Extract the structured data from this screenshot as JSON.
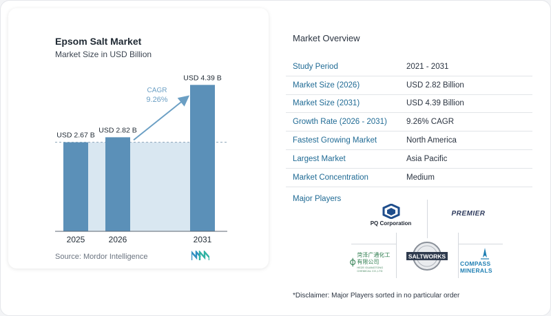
{
  "chart_data": {
    "type": "bar",
    "title": "Epsom Salt Market",
    "subtitle": "Market Size in USD Billion",
    "categories": [
      "2025",
      "2026",
      "2031"
    ],
    "values": [
      2.67,
      2.82,
      4.39
    ],
    "data_labels": [
      "USD 2.67 B",
      "USD 2.82 B",
      "USD 4.39 B"
    ],
    "cagr_label": "CAGR",
    "cagr_value": "9.26%",
    "bar_color": "#5b90b8",
    "highlight_color": "#d9e7f1",
    "ylim": [
      0,
      4.5
    ],
    "grid": false
  },
  "source": "Source:  Mordor Intelligence",
  "overview": {
    "title": "Market Overview",
    "rows": [
      {
        "label": "Study Period",
        "value": "2021 - 2031"
      },
      {
        "label": "Market Size (2026)",
        "value": "USD 2.82 Billion"
      },
      {
        "label": "Market Size (2031)",
        "value": "USD 4.39 Billion"
      },
      {
        "label": "Growth Rate (2026 - 2031)",
        "value": "9.26% CAGR"
      },
      {
        "label": "Fastest Growing Market",
        "value": "North America"
      },
      {
        "label": "Largest Market",
        "value": "Asia Pacific"
      },
      {
        "label": "Market Concentration",
        "value": "Medium"
      }
    ]
  },
  "players": {
    "title": "Major Players",
    "pq": "PQ Corporation",
    "premier": "PREMIER",
    "chinese": "菏泽广通化工有限公司",
    "chinese_sub": "HEZE GUANGTONG CHEMICAL CO.,LTD",
    "saltworks": "SALTWORKS",
    "compass": "COMPASS MINERALS"
  },
  "disclaimer": "*Disclaimer: Major Players sorted in no particular order",
  "colors": {
    "label_blue": "#1f6a94",
    "arrow": "#6b9fc4"
  }
}
